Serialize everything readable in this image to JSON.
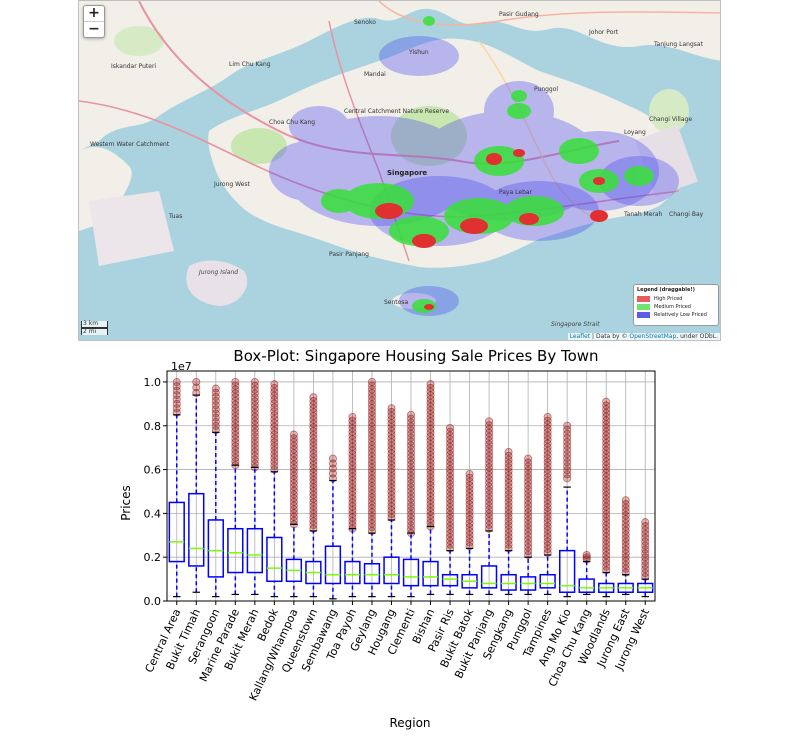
{
  "map": {
    "zoom_in": "+",
    "zoom_out": "−",
    "legend": {
      "title": "Legend (draggable!)",
      "items": [
        {
          "label": "High Priced",
          "color": "#e85b5b"
        },
        {
          "label": "Medium Priced",
          "color": "#6fe36f"
        },
        {
          "label": "Relatively Low Priced",
          "color": "#5c5ce8"
        }
      ]
    },
    "scale": {
      "metric": "3 km",
      "imperial": "2 mi"
    },
    "attribution": {
      "leaflet": "Leaflet",
      "sep": " | Data by © ",
      "osm": "OpenStreetMap",
      "rest": ", under ODbL."
    },
    "place_labels": {
      "pasir_gudang": "Pasir Gudang",
      "iskandar_puteri": "Iskandar Puteri",
      "singapore": "Singapore",
      "jurong_island": "Jurong Island",
      "singapore_strait": "Singapore Strait",
      "senoko": "Senoko",
      "yishun": "Yishun",
      "lim_chu_kang": "Lim Chu Kang",
      "mandai": "Mandai",
      "western_water_catchment": "Western Water Catchment",
      "central_catchment": "Central Catchment Nature Reserve",
      "choa_chu_kang": "Choa Chu Kang",
      "jurong_west": "Jurong West",
      "tuas": "Tuas",
      "changi_village": "Changi Village",
      "loyang": "Loyang",
      "tanah_merah": "Tanah Merah",
      "changi_bay": "Changi Bay",
      "sentosa": "Sentosa",
      "punggol": "Punggol",
      "paya_lebar": "Paya Lebar",
      "pasir_panjang": "Pasir Panjang",
      "tanjung_langsat": "Tanjung Langsat",
      "johor_port": "Johor Port"
    },
    "colors": {
      "water": "#aad3df",
      "land": "#f2efe9",
      "green": "#c8e6b0",
      "heat_low": "#4b4bf0",
      "heat_mid": "#38e038",
      "heat_high": "#e03030"
    }
  },
  "chart_data": {
    "type": "box",
    "title": "Box-Plot: Singapore Housing Sale Prices By Town",
    "xlabel": "Region",
    "ylabel": "Prices",
    "y_multiplier": "1e7",
    "ylim": [
      0,
      1.05
    ],
    "yticks": [
      0.0,
      0.2,
      0.4,
      0.6,
      0.8,
      1.0
    ],
    "grid": true,
    "colors": {
      "box": "#0000ff",
      "median": "#7cfc00",
      "whisker": "#0000ff",
      "cap": "#000000",
      "flier": "#8b0000"
    },
    "categories": [
      "Central Area",
      "Bukit Timah",
      "Serangoon",
      "Marine Parade",
      "Bukit Merah",
      "Bedok",
      "Kallang/Whampoa",
      "Queenstown",
      "Sembawang",
      "Toa Payoh",
      "Geylang",
      "Hougang",
      "Clementi",
      "Bishan",
      "Pasir Ris",
      "Bukit Batok",
      "Bukit Panjang",
      "Sengkang",
      "Punggol",
      "Tampines",
      "Ang Mo Kio",
      "Choa Chu Kang",
      "Woodlands",
      "Jurong East",
      "Jurong West"
    ],
    "boxes": [
      {
        "min": 0.02,
        "q1": 0.18,
        "median": 0.27,
        "q3": 0.45,
        "max": 0.85,
        "outliers_from": 0.86,
        "outliers_to": 1.0
      },
      {
        "min": 0.04,
        "q1": 0.16,
        "median": 0.24,
        "q3": 0.49,
        "max": 0.94,
        "outliers_from": 0.95,
        "outliers_to": 1.0
      },
      {
        "min": 0.02,
        "q1": 0.11,
        "median": 0.23,
        "q3": 0.37,
        "max": 0.77,
        "outliers_from": 0.78,
        "outliers_to": 0.97
      },
      {
        "min": 0.03,
        "q1": 0.13,
        "median": 0.22,
        "q3": 0.33,
        "max": 0.62,
        "outliers_from": 0.62,
        "outliers_to": 1.0
      },
      {
        "min": 0.03,
        "q1": 0.13,
        "median": 0.21,
        "q3": 0.33,
        "max": 0.61,
        "outliers_from": 0.61,
        "outliers_to": 1.0
      },
      {
        "min": 0.02,
        "q1": 0.09,
        "median": 0.15,
        "q3": 0.29,
        "max": 0.59,
        "outliers_from": 0.6,
        "outliers_to": 0.99
      },
      {
        "min": 0.02,
        "q1": 0.09,
        "median": 0.14,
        "q3": 0.19,
        "max": 0.35,
        "outliers_from": 0.35,
        "outliers_to": 0.76
      },
      {
        "min": 0.02,
        "q1": 0.08,
        "median": 0.13,
        "q3": 0.18,
        "max": 0.32,
        "outliers_from": 0.33,
        "outliers_to": 0.93
      },
      {
        "min": 0.01,
        "q1": 0.08,
        "median": 0.12,
        "q3": 0.25,
        "max": 0.55,
        "outliers_from": 0.56,
        "outliers_to": 0.65
      },
      {
        "min": 0.02,
        "q1": 0.08,
        "median": 0.12,
        "q3": 0.18,
        "max": 0.33,
        "outliers_from": 0.33,
        "outliers_to": 0.84
      },
      {
        "min": 0.02,
        "q1": 0.08,
        "median": 0.12,
        "q3": 0.17,
        "max": 0.31,
        "outliers_from": 0.32,
        "outliers_to": 1.0
      },
      {
        "min": 0.02,
        "q1": 0.08,
        "median": 0.12,
        "q3": 0.2,
        "max": 0.37,
        "outliers_from": 0.38,
        "outliers_to": 0.88
      },
      {
        "min": 0.02,
        "q1": 0.07,
        "median": 0.11,
        "q3": 0.19,
        "max": 0.31,
        "outliers_from": 0.31,
        "outliers_to": 0.85
      },
      {
        "min": 0.03,
        "q1": 0.07,
        "median": 0.11,
        "q3": 0.18,
        "max": 0.34,
        "outliers_from": 0.34,
        "outliers_to": 0.99
      },
      {
        "min": 0.03,
        "q1": 0.07,
        "median": 0.1,
        "q3": 0.12,
        "max": 0.23,
        "outliers_from": 0.24,
        "outliers_to": 0.79
      },
      {
        "min": 0.03,
        "q1": 0.06,
        "median": 0.09,
        "q3": 0.12,
        "max": 0.24,
        "outliers_from": 0.25,
        "outliers_to": 0.58
      },
      {
        "min": 0.03,
        "q1": 0.06,
        "median": 0.08,
        "q3": 0.16,
        "max": 0.32,
        "outliers_from": 0.33,
        "outliers_to": 0.82
      },
      {
        "min": 0.03,
        "q1": 0.05,
        "median": 0.08,
        "q3": 0.12,
        "max": 0.23,
        "outliers_from": 0.24,
        "outliers_to": 0.68
      },
      {
        "min": 0.03,
        "q1": 0.05,
        "median": 0.08,
        "q3": 0.11,
        "max": 0.2,
        "outliers_from": 0.21,
        "outliers_to": 0.65
      },
      {
        "min": 0.03,
        "q1": 0.06,
        "median": 0.08,
        "q3": 0.12,
        "max": 0.21,
        "outliers_from": 0.22,
        "outliers_to": 0.84
      },
      {
        "min": 0.02,
        "q1": 0.04,
        "median": 0.07,
        "q3": 0.23,
        "max": 0.52,
        "outliers_from": 0.56,
        "outliers_to": 0.8
      },
      {
        "min": 0.03,
        "q1": 0.04,
        "median": 0.06,
        "q3": 0.1,
        "max": 0.18,
        "outliers_from": 0.19,
        "outliers_to": 0.21
      },
      {
        "min": 0.02,
        "q1": 0.04,
        "median": 0.06,
        "q3": 0.08,
        "max": 0.13,
        "outliers_from": 0.14,
        "outliers_to": 0.91
      },
      {
        "min": 0.03,
        "q1": 0.04,
        "median": 0.06,
        "q3": 0.08,
        "max": 0.12,
        "outliers_from": 0.13,
        "outliers_to": 0.46
      },
      {
        "min": 0.02,
        "q1": 0.04,
        "median": 0.06,
        "q3": 0.08,
        "max": 0.1,
        "outliers_from": 0.11,
        "outliers_to": 0.36
      }
    ]
  }
}
